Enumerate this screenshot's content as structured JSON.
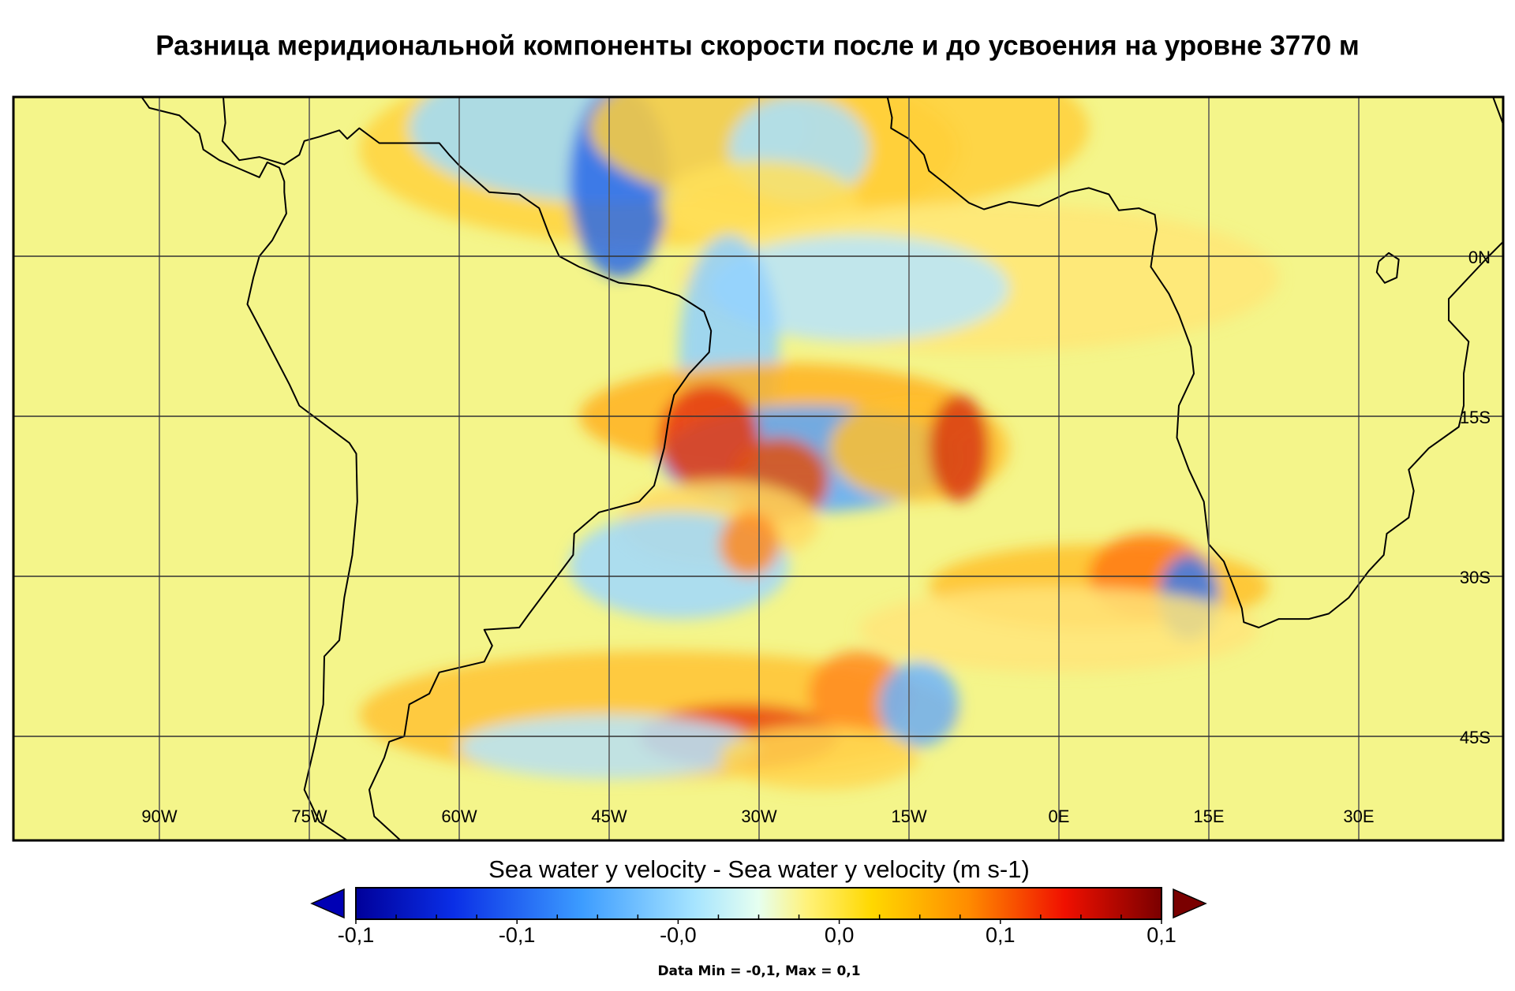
{
  "title": "Разница меридиональной компоненты скорости после и до усвоения на уровне 3770 м",
  "map": {
    "lon_labels": [
      "90W",
      "75W",
      "60W",
      "45W",
      "30W",
      "15W",
      "0E",
      "15E",
      "30E"
    ],
    "lat_labels": [
      "0N",
      "15S",
      "30S",
      "45S"
    ]
  },
  "colorbar": {
    "label": "Sea water y velocity - Sea water y velocity (m s-1)",
    "tick_labels": [
      "-0,1",
      "-0,1",
      "-0,0",
      "0,0",
      "0,1",
      "0,1"
    ]
  },
  "data_range": "Data Min = -0,1, Max = 0,1"
}
